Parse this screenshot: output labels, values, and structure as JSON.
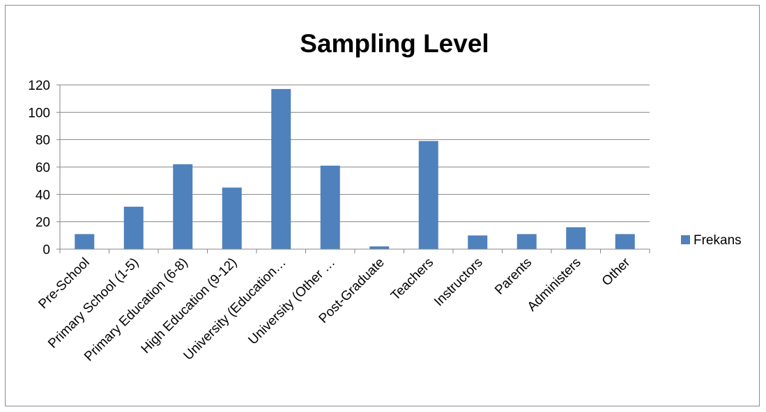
{
  "chart_data": {
    "type": "bar",
    "title": "Sampling Level",
    "categories": [
      "Pre-School",
      "Primary School (1-5)",
      "Primary Education (6-8)",
      "High Education (9-12)",
      "University (Education…",
      "University (Other …",
      "Post-Graduate",
      "Teachers",
      "Instructors",
      "Parents",
      "Administers",
      "Other"
    ],
    "series": [
      {
        "name": "Frekans",
        "values": [
          11,
          31,
          62,
          45,
          117,
          61,
          2,
          79,
          10,
          11,
          16,
          11
        ]
      }
    ],
    "ylim": [
      0,
      120
    ],
    "yticks": [
      0,
      20,
      40,
      60,
      80,
      100,
      120
    ],
    "grid": true,
    "legend": "right",
    "colors": {
      "bar": "#4f81bd",
      "grid": "#868686",
      "axis": "#868686"
    }
  }
}
